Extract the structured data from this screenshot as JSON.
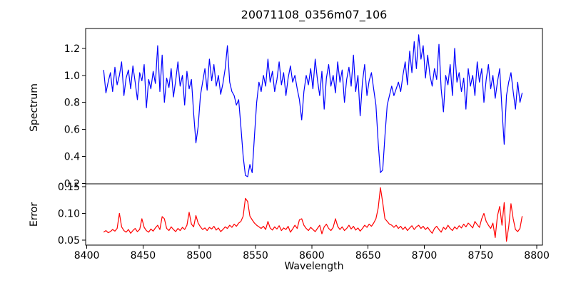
{
  "figure": {
    "background": "#ffffff"
  },
  "chart_data": {
    "type": "line",
    "title": "20071108_0356m07_106",
    "xlabel": "Wavelength",
    "xlim": [
      8399,
      8805
    ],
    "x_ticks": [
      8400,
      8450,
      8500,
      8550,
      8600,
      8650,
      8700,
      8750,
      8800
    ],
    "x_tick_labels": [
      "8400",
      "8450",
      "8500",
      "8550",
      "8600",
      "8650",
      "8700",
      "8750",
      "8800"
    ],
    "grid": false,
    "legend": "none",
    "panels": [
      {
        "ylabel": "Spectrum",
        "ylim": [
          0.197,
          1.347
        ],
        "y_ticks": [
          0.2,
          0.4,
          0.6,
          0.8,
          1.0,
          1.2
        ],
        "y_tick_labels": [
          "0.2",
          "0.4",
          "0.6",
          "0.8",
          "1.0",
          "1.2"
        ],
        "series": {
          "name": "spectrum",
          "color": "#0000ff",
          "x_start": 8415,
          "x_step": 2,
          "values": [
            1.04,
            0.87,
            0.95,
            1.02,
            0.88,
            1.06,
            0.93,
            1.0,
            1.1,
            0.85,
            0.98,
            1.04,
            0.9,
            1.07,
            0.95,
            0.82,
            1.02,
            0.96,
            1.08,
            0.76,
            0.97,
            0.9,
            1.03,
            0.94,
            1.22,
            0.88,
            1.15,
            0.8,
            0.98,
            0.91,
            1.05,
            0.84,
            0.96,
            1.1,
            0.92,
            1.0,
            0.78,
            1.03,
            0.9,
            0.97,
            0.72,
            0.5,
            0.62,
            0.85,
            0.95,
            1.05,
            0.89,
            1.12,
            0.96,
            1.08,
            0.92,
            1.0,
            0.86,
            0.94,
            1.05,
            1.22,
            0.95,
            0.88,
            0.85,
            0.78,
            0.82,
            0.62,
            0.4,
            0.26,
            0.25,
            0.34,
            0.28,
            0.55,
            0.8,
            0.95,
            0.88,
            1.0,
            0.92,
            1.12,
            0.95,
            1.03,
            0.88,
            0.97,
            1.1,
            0.93,
            1.02,
            0.85,
            0.98,
            1.07,
            0.95,
            1.0,
            0.9,
            0.82,
            0.67,
            0.88,
            1.0,
            0.93,
            1.05,
            0.9,
            1.12,
            0.97,
            0.85,
            1.03,
            0.75,
            0.98,
            1.08,
            0.92,
            1.0,
            0.87,
            1.1,
            0.95,
            1.04,
            0.8,
            0.97,
            1.06,
            0.92,
            1.15,
            0.88,
            1.0,
            0.7,
            0.95,
            1.08,
            0.85,
            0.96,
            1.02,
            0.9,
            0.78,
            0.5,
            0.28,
            0.3,
            0.55,
            0.78,
            0.85,
            0.92,
            0.85,
            0.9,
            0.95,
            0.88,
            1.0,
            1.1,
            0.93,
            1.18,
            1.02,
            1.25,
            1.05,
            1.3,
            1.12,
            1.22,
            0.98,
            1.15,
            1.0,
            0.92,
            1.05,
            0.97,
            1.23,
            0.9,
            0.73,
            1.0,
            0.93,
            1.08,
            0.85,
            1.2,
            0.95,
            1.02,
            0.88,
            0.98,
            0.75,
            1.05,
            0.92,
            1.0,
            0.85,
            1.1,
            0.95,
            1.05,
            0.8,
            0.97,
            1.08,
            0.9,
            1.0,
            0.83,
            0.95,
            1.05,
            0.75,
            0.49,
            0.85,
            0.95,
            1.02,
            0.88,
            0.75,
            0.95,
            0.8,
            0.87
          ]
        }
      },
      {
        "ylabel": "Error",
        "ylim": [
          0.041,
          0.155
        ],
        "y_ticks": [
          0.05,
          0.1,
          0.15
        ],
        "y_tick_labels": [
          "0.05",
          "0.10",
          "0.15"
        ],
        "series": {
          "name": "error",
          "color": "#ff0000",
          "x_start": 8415,
          "x_step": 2,
          "values": [
            0.065,
            0.068,
            0.064,
            0.066,
            0.07,
            0.067,
            0.072,
            0.1,
            0.075,
            0.068,
            0.065,
            0.07,
            0.063,
            0.068,
            0.072,
            0.066,
            0.07,
            0.09,
            0.074,
            0.068,
            0.065,
            0.071,
            0.067,
            0.073,
            0.078,
            0.07,
            0.094,
            0.09,
            0.072,
            0.068,
            0.075,
            0.07,
            0.066,
            0.072,
            0.068,
            0.074,
            0.07,
            0.078,
            0.102,
            0.08,
            0.075,
            0.096,
            0.082,
            0.075,
            0.07,
            0.073,
            0.068,
            0.074,
            0.071,
            0.076,
            0.069,
            0.073,
            0.066,
            0.07,
            0.075,
            0.072,
            0.078,
            0.074,
            0.08,
            0.076,
            0.082,
            0.085,
            0.095,
            0.128,
            0.122,
            0.095,
            0.088,
            0.082,
            0.078,
            0.075,
            0.072,
            0.076,
            0.07,
            0.085,
            0.073,
            0.069,
            0.075,
            0.071,
            0.077,
            0.068,
            0.073,
            0.07,
            0.076,
            0.065,
            0.071,
            0.078,
            0.072,
            0.088,
            0.09,
            0.078,
            0.072,
            0.068,
            0.074,
            0.07,
            0.066,
            0.072,
            0.078,
            0.062,
            0.075,
            0.08,
            0.072,
            0.068,
            0.074,
            0.09,
            0.076,
            0.07,
            0.075,
            0.068,
            0.072,
            0.078,
            0.071,
            0.076,
            0.069,
            0.073,
            0.067,
            0.072,
            0.078,
            0.074,
            0.08,
            0.076,
            0.082,
            0.09,
            0.11,
            0.148,
            0.12,
            0.09,
            0.085,
            0.08,
            0.078,
            0.074,
            0.078,
            0.072,
            0.076,
            0.07,
            0.075,
            0.068,
            0.073,
            0.077,
            0.07,
            0.075,
            0.078,
            0.072,
            0.076,
            0.07,
            0.074,
            0.068,
            0.063,
            0.072,
            0.076,
            0.07,
            0.065,
            0.074,
            0.07,
            0.078,
            0.072,
            0.068,
            0.075,
            0.071,
            0.077,
            0.073,
            0.08,
            0.075,
            0.082,
            0.078,
            0.073,
            0.085,
            0.079,
            0.074,
            0.09,
            0.1,
            0.085,
            0.078,
            0.072,
            0.082,
            0.055,
            0.095,
            0.113,
            0.078,
            0.12,
            0.048,
            0.075,
            0.118,
            0.09,
            0.07,
            0.066,
            0.072,
            0.095
          ]
        }
      }
    ]
  }
}
